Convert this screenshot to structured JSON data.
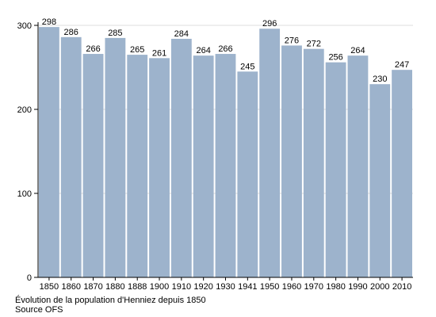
{
  "chart_data": {
    "type": "bar",
    "categories": [
      "1850",
      "1860",
      "1870",
      "1880",
      "1888",
      "1900",
      "1910",
      "1920",
      "1930",
      "1941",
      "1950",
      "1960",
      "1970",
      "1980",
      "1990",
      "2000",
      "2010"
    ],
    "values": [
      298,
      286,
      266,
      285,
      265,
      261,
      284,
      264,
      266,
      245,
      296,
      276,
      272,
      256,
      264,
      230,
      247
    ],
    "data_labels": [
      "298",
      "286",
      "266",
      "285",
      "265",
      "261",
      "284",
      "264",
      "266",
      "245",
      "296",
      "276",
      "272",
      "256",
      "264",
      "230",
      "247"
    ],
    "ylim": [
      0,
      300
    ],
    "yticks": [
      0,
      100,
      200,
      300
    ],
    "grid": true,
    "bar_color": "#9db3cc",
    "grid_color": "#dddddd",
    "axis_color": "#000000"
  },
  "caption": {
    "line1": "Évolution de la population d'Henniez depuis 1850",
    "line2": "Source OFS"
  }
}
